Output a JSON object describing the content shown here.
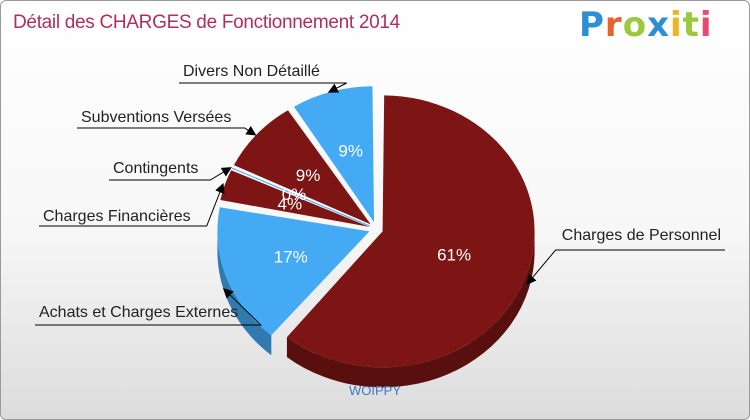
{
  "header": {
    "title": "Détail des CHARGES de Fonctionnement 2014",
    "logo": [
      "P",
      "r",
      "o",
      "x",
      "i",
      "t",
      "i"
    ]
  },
  "footer": {
    "label": "WOIPPY"
  },
  "chart_data": {
    "type": "pie",
    "title": "Détail des CHARGES de Fonctionnement 2014",
    "subtitle": "WOIPPY",
    "slices": [
      {
        "label": "Charges de Personnel",
        "value": 61,
        "display": "61%",
        "color": "#7d1515"
      },
      {
        "label": "Achats et Charges Externes",
        "value": 17,
        "display": "17%",
        "color": "#43aaf3"
      },
      {
        "label": "Charges Financières",
        "value": 4,
        "display": "4%",
        "color": "#7d1515"
      },
      {
        "label": "Contingents",
        "value": 0,
        "display": "0%",
        "color": "#43aaf3"
      },
      {
        "label": "Subventions Versées",
        "value": 9,
        "display": "9%",
        "color": "#7d1515"
      },
      {
        "label": "Divers Non Détaillé",
        "value": 9,
        "display": "9%",
        "color": "#43aaf3"
      }
    ]
  }
}
